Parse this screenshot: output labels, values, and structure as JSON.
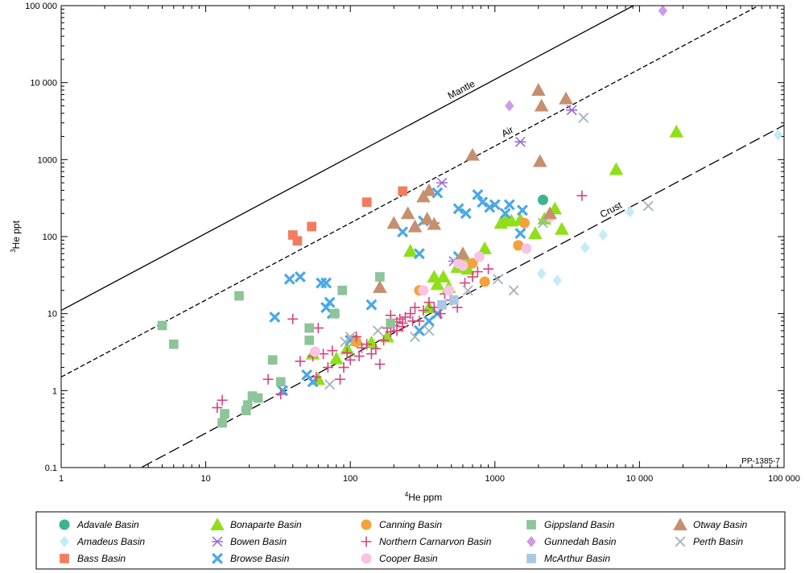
{
  "chart_data": {
    "type": "scatter",
    "title": "",
    "xlabel_sup": "4",
    "xlabel": "He ppm",
    "ylabel_sup": "3",
    "ylabel": "He ppt",
    "xscale": "log",
    "yscale": "log",
    "xlim": [
      1,
      100000
    ],
    "ylim": [
      0.1,
      100000
    ],
    "xticks": [
      "1",
      "10",
      "100",
      "1000",
      "10 000",
      "100 000"
    ],
    "yticks": [
      "0.1",
      "1",
      "10",
      "100",
      "1000",
      "10 000",
      "100 000"
    ],
    "figure_code": "PP-1385-7",
    "legend_position": "bottom",
    "reference_lines": [
      {
        "name": "Mantle",
        "ratio_ppt_per_ppm": 11,
        "style": "solid"
      },
      {
        "name": "Air",
        "ratio_ppt_per_ppm": 1.5,
        "style": "short-dash"
      },
      {
        "name": "Crust",
        "ratio_ppt_per_ppm": 0.028,
        "style": "long-dash"
      }
    ],
    "series": [
      {
        "name": "Adavale Basin",
        "marker": "circle",
        "color": "#3cb391",
        "points": [
          [
            2150,
            300
          ]
        ]
      },
      {
        "name": "Amadeus Basin",
        "marker": "diamond",
        "color": "#c2ecf7",
        "points": [
          [
            2100,
            33
          ],
          [
            2700,
            27
          ],
          [
            4200,
            72
          ],
          [
            5600,
            105
          ],
          [
            8600,
            210
          ],
          [
            91000,
            2100
          ]
        ]
      },
      {
        "name": "Bass Basin",
        "marker": "square",
        "color": "#f47c5e",
        "points": [
          [
            40,
            105
          ],
          [
            43,
            88
          ],
          [
            54,
            135
          ],
          [
            130,
            280
          ],
          [
            230,
            390
          ]
        ]
      },
      {
        "name": "Bonaparte Basin",
        "marker": "triangle",
        "color": "#8fe01b",
        "points": [
          [
            1100,
            150
          ],
          [
            1200,
            170
          ],
          [
            1300,
            160
          ],
          [
            1500,
            165
          ],
          [
            1900,
            110
          ],
          [
            2200,
            170
          ],
          [
            2600,
            230
          ],
          [
            2900,
            125
          ],
          [
            6900,
            750
          ],
          [
            18000,
            2300
          ],
          [
            850,
            70
          ],
          [
            260,
            65
          ],
          [
            380,
            30
          ],
          [
            400,
            24
          ],
          [
            440,
            30
          ],
          [
            480,
            22
          ],
          [
            550,
            40
          ],
          [
            600,
            55
          ],
          [
            650,
            38
          ],
          [
            55,
            3
          ],
          [
            60,
            1.4
          ],
          [
            80,
            2.6
          ],
          [
            95,
            3.5
          ],
          [
            110,
            4.5
          ],
          [
            140,
            4.2
          ],
          [
            180,
            5
          ],
          [
            350,
            12
          ]
        ]
      },
      {
        "name": "Bowen Basin",
        "marker": "asterisk",
        "color": "#9b6cd8",
        "points": [
          [
            430,
            500
          ],
          [
            1500,
            1700
          ],
          [
            3400,
            4400
          ],
          [
            520,
            48
          ]
        ]
      },
      {
        "name": "Browse Basin",
        "marker": "cross-bold",
        "color": "#4aa8e6",
        "points": [
          [
            45,
            30
          ],
          [
            30,
            9
          ],
          [
            34,
            1
          ],
          [
            38,
            28
          ],
          [
            50,
            1.6
          ],
          [
            55,
            1.3
          ],
          [
            63,
            25
          ],
          [
            68,
            25
          ],
          [
            72,
            14
          ],
          [
            75,
            10
          ],
          [
            68,
            12
          ],
          [
            100,
            4.5
          ],
          [
            140,
            13
          ],
          [
            230,
            115
          ],
          [
            300,
            60
          ],
          [
            320,
            160
          ],
          [
            400,
            370
          ],
          [
            560,
            230
          ],
          [
            630,
            200
          ],
          [
            760,
            350
          ],
          [
            820,
            280
          ],
          [
            920,
            240
          ],
          [
            1000,
            260
          ],
          [
            1260,
            260
          ],
          [
            1550,
            220
          ],
          [
            1180,
            200
          ],
          [
            1500,
            110
          ],
          [
            350,
            8
          ],
          [
            400,
            10
          ],
          [
            560,
            55
          ],
          [
            300,
            6
          ]
        ]
      },
      {
        "name": "Canning Basin",
        "marker": "circle",
        "color": "#f5a13c",
        "points": [
          [
            110,
            4.3
          ],
          [
            300,
            20
          ],
          [
            700,
            45
          ],
          [
            850,
            26
          ],
          [
            1450,
            77
          ],
          [
            1600,
            150
          ]
        ]
      },
      {
        "name": "Northern Carnarvon Basin",
        "marker": "plus",
        "color": "#d4447e",
        "points": [
          [
            12,
            0.6
          ],
          [
            13,
            0.75
          ],
          [
            27,
            1.4
          ],
          [
            33,
            0.9
          ],
          [
            40,
            8.5
          ],
          [
            45,
            2.4
          ],
          [
            55,
            2.8
          ],
          [
            58,
            1.5
          ],
          [
            60,
            6.5
          ],
          [
            65,
            3
          ],
          [
            70,
            2
          ],
          [
            75,
            3.3
          ],
          [
            85,
            1.4
          ],
          [
            90,
            2
          ],
          [
            95,
            3.1
          ],
          [
            100,
            2.5
          ],
          [
            110,
            5
          ],
          [
            115,
            2.8
          ],
          [
            120,
            3.6
          ],
          [
            130,
            4
          ],
          [
            140,
            3
          ],
          [
            150,
            3.5
          ],
          [
            160,
            2.2
          ],
          [
            170,
            4.5
          ],
          [
            180,
            6.5
          ],
          [
            190,
            5.8
          ],
          [
            200,
            7
          ],
          [
            210,
            6
          ],
          [
            220,
            8.5
          ],
          [
            230,
            7.5
          ],
          [
            240,
            9
          ],
          [
            260,
            10
          ],
          [
            280,
            12
          ],
          [
            300,
            8
          ],
          [
            320,
            11
          ],
          [
            350,
            14
          ],
          [
            380,
            12
          ],
          [
            420,
            10
          ],
          [
            450,
            18
          ],
          [
            500,
            15
          ],
          [
            550,
            12
          ],
          [
            620,
            25
          ],
          [
            700,
            30
          ],
          [
            760,
            35
          ],
          [
            900,
            38
          ],
          [
            4000,
            340
          ],
          [
            380,
            150
          ],
          [
            190,
            9.5
          ],
          [
            210,
            7.8
          ],
          [
            230,
            6.8
          ],
          [
            270,
            8
          ]
        ]
      },
      {
        "name": "Cooper Basin",
        "marker": "circle",
        "color": "#f8c4e2",
        "points": [
          [
            57,
            3.2
          ],
          [
            320,
            20
          ],
          [
            480,
            20
          ],
          [
            560,
            45
          ],
          [
            600,
            42
          ],
          [
            780,
            55
          ],
          [
            1650,
            70
          ],
          [
            2400,
            180
          ]
        ]
      },
      {
        "name": "Gippsland Basin",
        "marker": "square",
        "color": "#8dc49a",
        "points": [
          [
            5,
            7
          ],
          [
            6,
            4
          ],
          [
            13,
            0.38
          ],
          [
            13.5,
            0.5
          ],
          [
            19,
            0.55
          ],
          [
            19.5,
            0.65
          ],
          [
            21,
            0.85
          ],
          [
            23,
            0.8
          ],
          [
            29,
            2.5
          ],
          [
            33,
            1.3
          ],
          [
            52,
            6.5
          ],
          [
            52,
            4.5
          ],
          [
            78,
            10
          ],
          [
            88,
            20
          ],
          [
            160,
            30
          ],
          [
            17,
            17
          ],
          [
            190,
            7.5
          ]
        ]
      },
      {
        "name": "Gunnedah Basin",
        "marker": "diamond",
        "color": "#cc9ce8",
        "points": [
          [
            1260,
            5000
          ],
          [
            14500,
            86000
          ]
        ]
      },
      {
        "name": "McArthur Basin",
        "marker": "square",
        "color": "#a8c8e4",
        "points": [
          [
            430,
            13
          ],
          [
            520,
            15
          ]
        ]
      },
      {
        "name": "Otway Basin",
        "marker": "triangle",
        "color": "#c59070",
        "points": [
          [
            2000,
            8000
          ],
          [
            2100,
            5000
          ],
          [
            3100,
            6200
          ],
          [
            2050,
            950
          ],
          [
            700,
            1150
          ],
          [
            350,
            400
          ],
          [
            320,
            330
          ],
          [
            250,
            200
          ],
          [
            200,
            150
          ],
          [
            280,
            135
          ],
          [
            340,
            170
          ],
          [
            380,
            145
          ],
          [
            160,
            22
          ],
          [
            600,
            60
          ],
          [
            2400,
            200
          ]
        ]
      },
      {
        "name": "Perth Basin",
        "marker": "cross",
        "color": "#a3b1bd",
        "points": [
          [
            4100,
            3500
          ],
          [
            11500,
            250
          ],
          [
            2150,
            150
          ],
          [
            1050,
            28
          ],
          [
            1350,
            20
          ],
          [
            650,
            20
          ],
          [
            100,
            5
          ],
          [
            92,
            4.3
          ],
          [
            155,
            6
          ],
          [
            280,
            5
          ],
          [
            350,
            6
          ],
          [
            72,
            1.2
          ]
        ]
      }
    ]
  }
}
